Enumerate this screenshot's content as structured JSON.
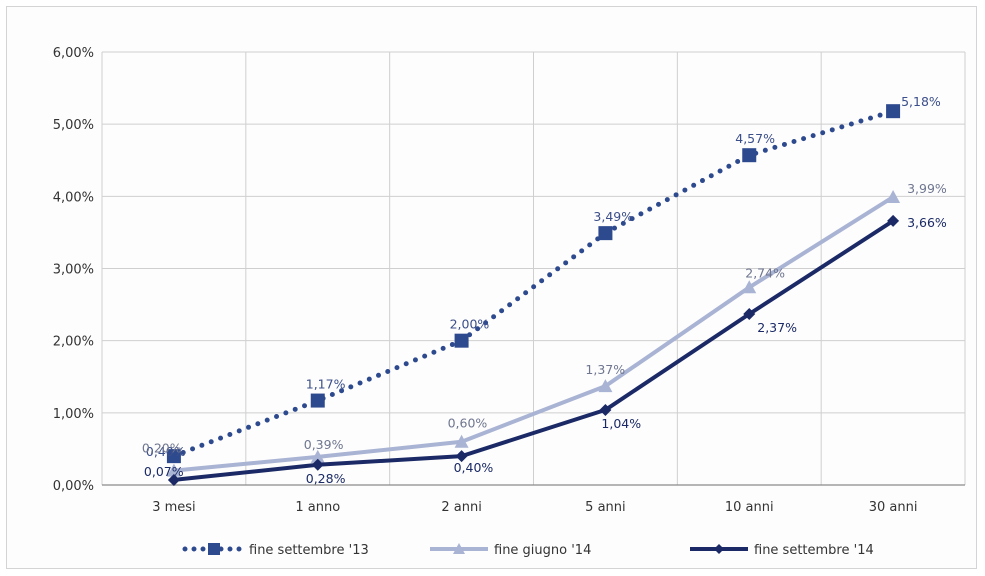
{
  "chart_data": {
    "type": "line",
    "categories": [
      "3 mesi",
      "1 anno",
      "2 anni",
      "5 anni",
      "10 anni",
      "30 anni"
    ],
    "ylim": [
      0,
      6
    ],
    "yticks": [
      "0,00%",
      "1,00%",
      "2,00%",
      "3,00%",
      "4,00%",
      "5,00%",
      "6,00%"
    ],
    "grid": true,
    "legend_position": "bottom",
    "series": [
      {
        "name": "fine settembre '13",
        "color": "#2e4a8e",
        "style": "dotted",
        "marker": "square",
        "values": [
          0.4,
          1.17,
          2.0,
          3.49,
          4.57,
          5.18
        ],
        "labels": [
          "0,40%",
          "1,17%",
          "2,00%",
          "3,49%",
          "4,57%",
          "5,18%"
        ]
      },
      {
        "name": "fine giugno '14",
        "color": "#a9b3d3",
        "style": "solid",
        "marker": "triangle",
        "values": [
          0.2,
          0.39,
          0.6,
          1.37,
          2.74,
          3.99
        ],
        "labels": [
          "0,20%",
          "0,39%",
          "0,60%",
          "1,37%",
          "2,74%",
          "3,99%"
        ]
      },
      {
        "name": "fine settembre '14",
        "color": "#1b2a66",
        "style": "solid",
        "marker": "diamond",
        "values": [
          0.07,
          0.28,
          0.4,
          1.04,
          2.37,
          3.66
        ],
        "labels": [
          "0,07%",
          "0,28%",
          "0,40%",
          "1,04%",
          "2,37%",
          "3,66%"
        ]
      }
    ]
  }
}
